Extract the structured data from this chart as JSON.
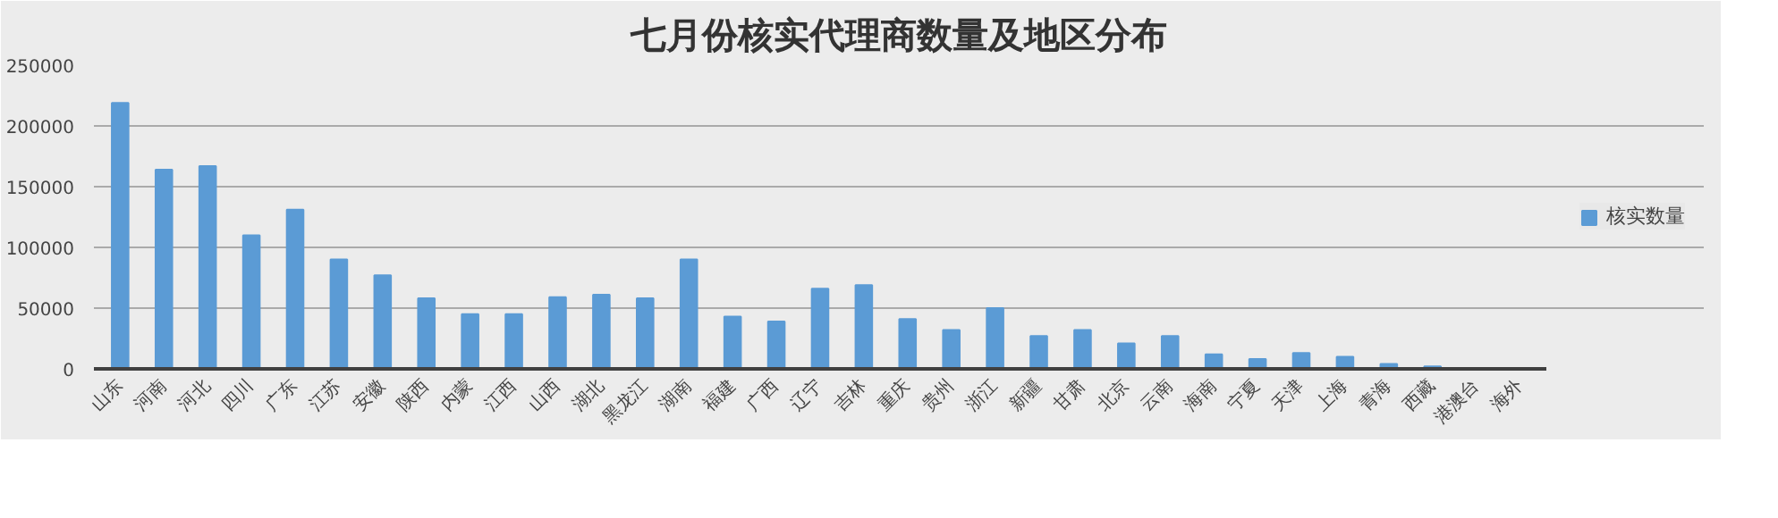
{
  "chart_data": {
    "type": "bar",
    "title": "七月份核实代理商数量及地区分布",
    "categories": [
      "山东",
      "河南",
      "河北",
      "四川",
      "广东",
      "江苏",
      "安徽",
      "陕西",
      "内蒙",
      "江西",
      "山西",
      "湖北",
      "黑龙江",
      "湖南",
      "福建",
      "广西",
      "辽宁",
      "吉林",
      "重庆",
      "贵州",
      "浙江",
      "新疆",
      "甘肃",
      "北京",
      "云南",
      "海南",
      "宁夏",
      "天津",
      "上海",
      "青海",
      "西藏",
      "港澳台",
      "海外"
    ],
    "series": [
      {
        "name": "核实数量",
        "color": "#5b9bd5",
        "values": [
          219000,
          164000,
          167000,
          110000,
          131000,
          90000,
          77000,
          58000,
          45000,
          45000,
          59000,
          61000,
          58000,
          90000,
          43000,
          39000,
          66000,
          69000,
          41000,
          32000,
          50000,
          27000,
          32000,
          21000,
          27000,
          12000,
          8000,
          13000,
          10000,
          4000,
          2000,
          null,
          null
        ]
      }
    ],
    "ylim": [
      0,
      250000
    ],
    "yticks": [
      0,
      50000,
      100000,
      150000,
      200000,
      250000
    ],
    "grid": "y",
    "legend": "right"
  }
}
